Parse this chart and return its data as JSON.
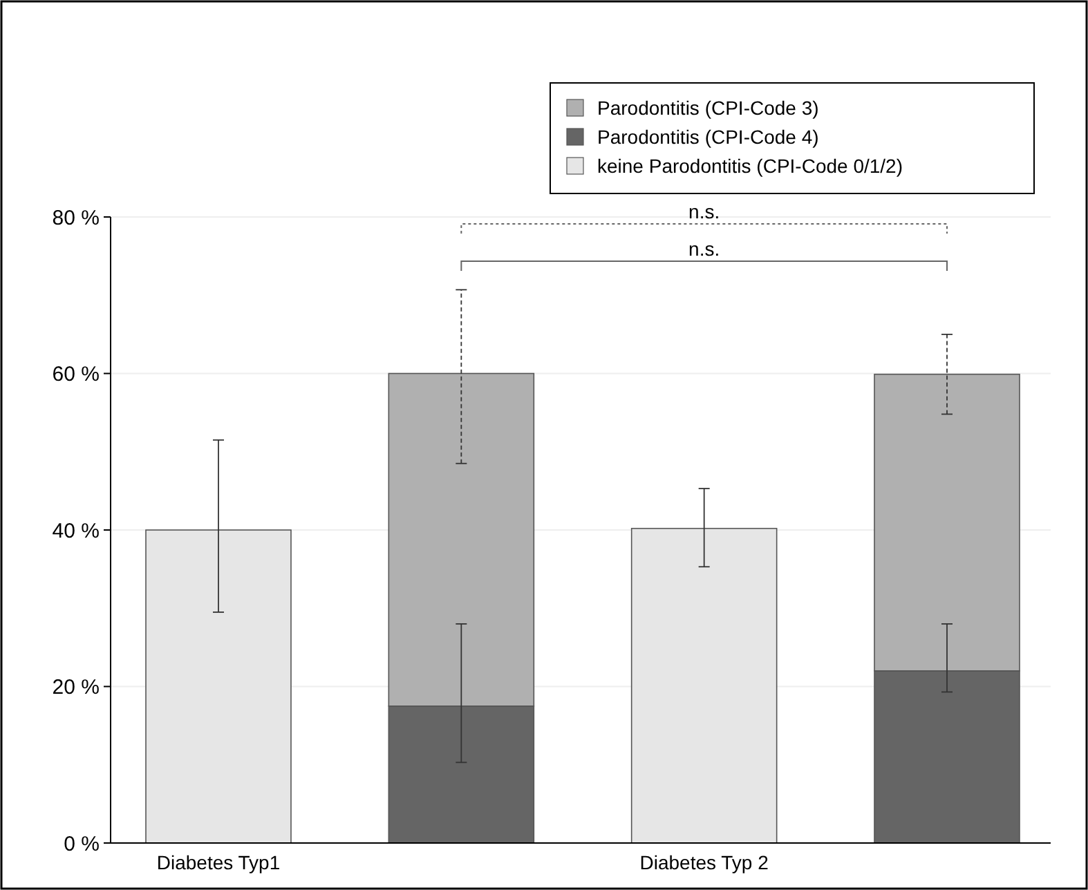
{
  "chart_data": {
    "type": "bar",
    "stacked": true,
    "categories": [
      "Diabetes Typ1",
      null,
      "Diabetes Typ 2",
      null
    ],
    "series": [
      {
        "name": "keine Parodontitis (CPI-Code 0/1/2)",
        "color": "#e6e6e6",
        "values": [
          40,
          null,
          40.2,
          null
        ],
        "errors": [
          [
            29.5,
            51.5
          ],
          null,
          [
            35.3,
            45.3
          ],
          null
        ]
      },
      {
        "name": "Parodontitis (CPI-Code 4)",
        "color": "#656565",
        "values": [
          null,
          17.5,
          null,
          22
        ],
        "errors": [
          null,
          [
            10.3,
            28
          ],
          null,
          [
            19.3,
            28
          ]
        ]
      },
      {
        "name": "Parodontitis (CPI-Code 3)",
        "color": "#b0b0b0",
        "values": [
          null,
          42.5,
          null,
          37.9
        ],
        "errors": [
          null,
          [
            48.5,
            70.7
          ],
          null,
          [
            54.8,
            65
          ]
        ],
        "line_style": "dashed"
      }
    ],
    "ylim": [
      0,
      80
    ],
    "yticks": [
      {
        "value": 0,
        "label": "0 %"
      },
      {
        "value": 20,
        "label": "20 %"
      },
      {
        "value": 40,
        "label": "40 %"
      },
      {
        "value": 60,
        "label": "60 %"
      },
      {
        "value": 80,
        "label": "80 %"
      }
    ],
    "grid": "y",
    "legend": "top right",
    "annotations": [
      "n.s.",
      "n.s."
    ]
  }
}
